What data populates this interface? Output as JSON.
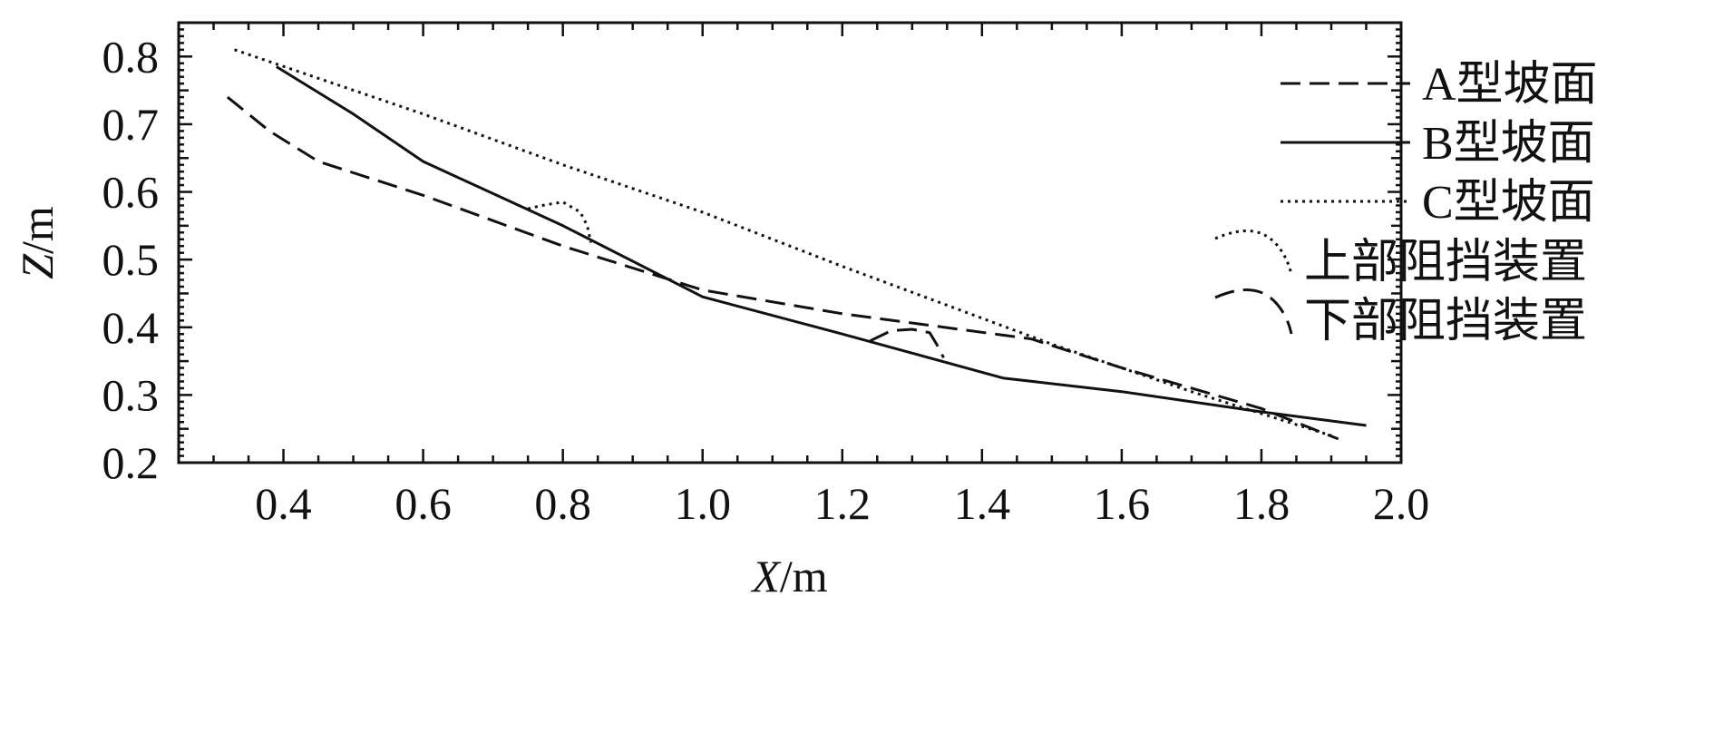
{
  "chart_data": {
    "type": "line",
    "xlabel_var": "X",
    "xlabel_unit": "/m",
    "ylabel_var": "Z",
    "ylabel_unit": "/m",
    "xlim": [
      0.25,
      2.0
    ],
    "ylim": [
      0.2,
      0.85
    ],
    "xticks": [
      0.4,
      0.6,
      0.8,
      1.0,
      1.2,
      1.4,
      1.6,
      1.8,
      2.0
    ],
    "xtick_labels": [
      "0.4",
      "0.6",
      "0.8",
      "1.0",
      "1.2",
      "1.4",
      "1.6",
      "1.8",
      "2.0"
    ],
    "yticks": [
      0.2,
      0.3,
      0.4,
      0.5,
      0.6,
      0.7,
      0.8
    ],
    "ytick_labels": [
      "0.2",
      "0.3",
      "0.4",
      "0.5",
      "0.6",
      "0.7",
      "0.8"
    ],
    "legend_position": "top-right",
    "grid": false,
    "series": [
      {
        "name": "A型坡面",
        "style": "dashed",
        "x": [
          0.32,
          0.38,
          0.45,
          0.6,
          0.8,
          1.0,
          1.2,
          1.47,
          1.6,
          1.8,
          1.91
        ],
        "y": [
          0.74,
          0.69,
          0.645,
          0.595,
          0.52,
          0.455,
          0.42,
          0.383,
          0.34,
          0.28,
          0.235
        ]
      },
      {
        "name": "B型坡面",
        "style": "solid",
        "x": [
          0.39,
          0.5,
          0.6,
          0.8,
          1.0,
          1.2,
          1.43,
          1.6,
          1.8,
          1.95
        ],
        "y": [
          0.785,
          0.715,
          0.645,
          0.55,
          0.445,
          0.39,
          0.325,
          0.305,
          0.275,
          0.255
        ]
      },
      {
        "name": "C型坡面",
        "style": "dotted",
        "x": [
          0.33,
          0.6,
          0.8,
          1.0,
          1.2,
          1.5,
          1.7,
          1.9
        ],
        "y": [
          0.81,
          0.715,
          0.64,
          0.57,
          0.49,
          0.375,
          0.305,
          0.24
        ]
      },
      {
        "name": "上部阻挡装置",
        "style": "dotted",
        "x": [
          0.75,
          0.77,
          0.8,
          0.825,
          0.835,
          0.84
        ],
        "y": [
          0.575,
          0.58,
          0.585,
          0.57,
          0.55,
          0.525
        ]
      },
      {
        "name": "下部阻挡装置",
        "style": "dashed",
        "x": [
          1.24,
          1.27,
          1.3,
          1.325,
          1.335,
          1.345
        ],
        "y": [
          0.38,
          0.395,
          0.397,
          0.392,
          0.375,
          0.355
        ]
      }
    ],
    "legend_entries": [
      {
        "label": "A型坡面",
        "style": "dashed",
        "sample": "line"
      },
      {
        "label": "B型坡面",
        "style": "solid",
        "sample": "line"
      },
      {
        "label": "C型坡面",
        "style": "dotted",
        "sample": "line"
      },
      {
        "label": "上部阻挡装置",
        "style": "dotted",
        "sample": "hump"
      },
      {
        "label": "下部阻挡装置",
        "style": "dashed",
        "sample": "hump"
      }
    ]
  }
}
